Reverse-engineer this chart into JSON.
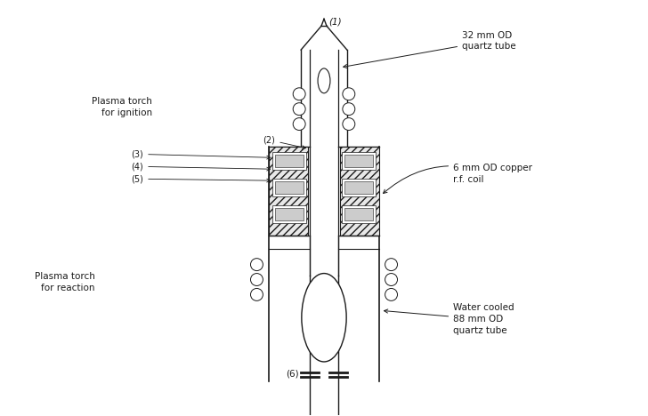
{
  "title": "",
  "bg_color": "#ffffff",
  "line_color": "#1a1a1a",
  "label_1": "(1)",
  "label_2": "(2)",
  "label_3": "(3)",
  "label_4": "(4)",
  "label_5": "(5)",
  "label_6": "(6)",
  "ann_32mm": "32 mm OD\nquartz tube",
  "ann_6mm": "6 mm OD copper\nr.f. coil",
  "ann_plasma_ign": "Plasma torch\nfor ignition",
  "ann_plasma_rxn": "Plasma torch\nfor reaction",
  "ann_water": "Water cooled\n88 mm OD\nquartz tube",
  "fig_width": 7.28,
  "fig_height": 4.68,
  "dpi": 100
}
